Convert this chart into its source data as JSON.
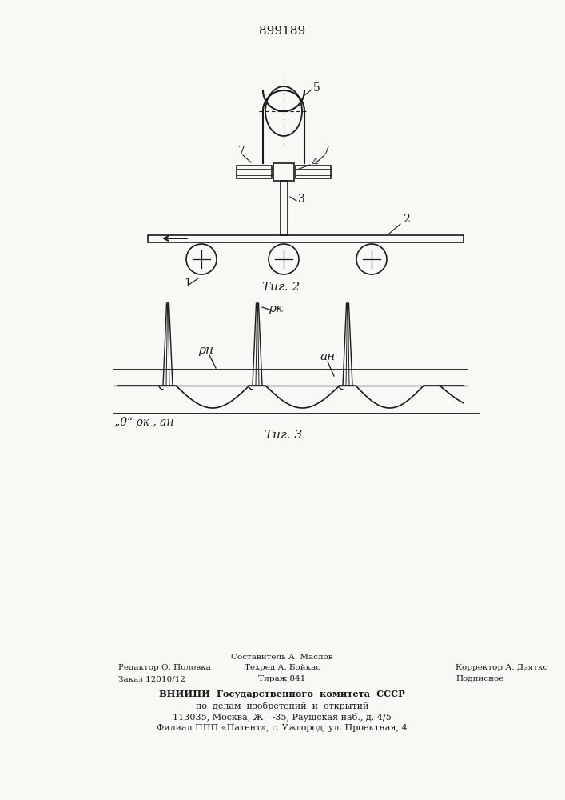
{
  "patent_number": "899189",
  "fig2_caption": "Τиг. 2",
  "fig3_caption": "Τиг. 3",
  "fig3_zero_label": "„0“ ρк , ан",
  "label_rk": "ρк",
  "label_rn": "ρн",
  "label_an": "ан",
  "footer_left_line1": "Редактор О. Половка",
  "footer_left_line2": "Заказ 12010/12",
  "footer_center_line0": "Составитель А. Маслов",
  "footer_center_line1": "Техред А. Бойкас",
  "footer_center_line2": "Тираж 841",
  "footer_right_line1": "Корректор А. Дзятко",
  "footer_right_line2": "Подписное",
  "footer_vniip1": "ВНИИПИ  Государственного  комитета  СССР",
  "footer_vniip2": "по  делам  изобретений  и  открытий",
  "footer_vniip3": "113035, Москва, Ж—-35, Раушская наб., д. 4/5",
  "footer_vniip4": "Филиал ППП «Патент», г. Ужгород, ул. Проектная, 4",
  "bg_color": "#f8f8f5",
  "line_color": "#1a1a1a"
}
